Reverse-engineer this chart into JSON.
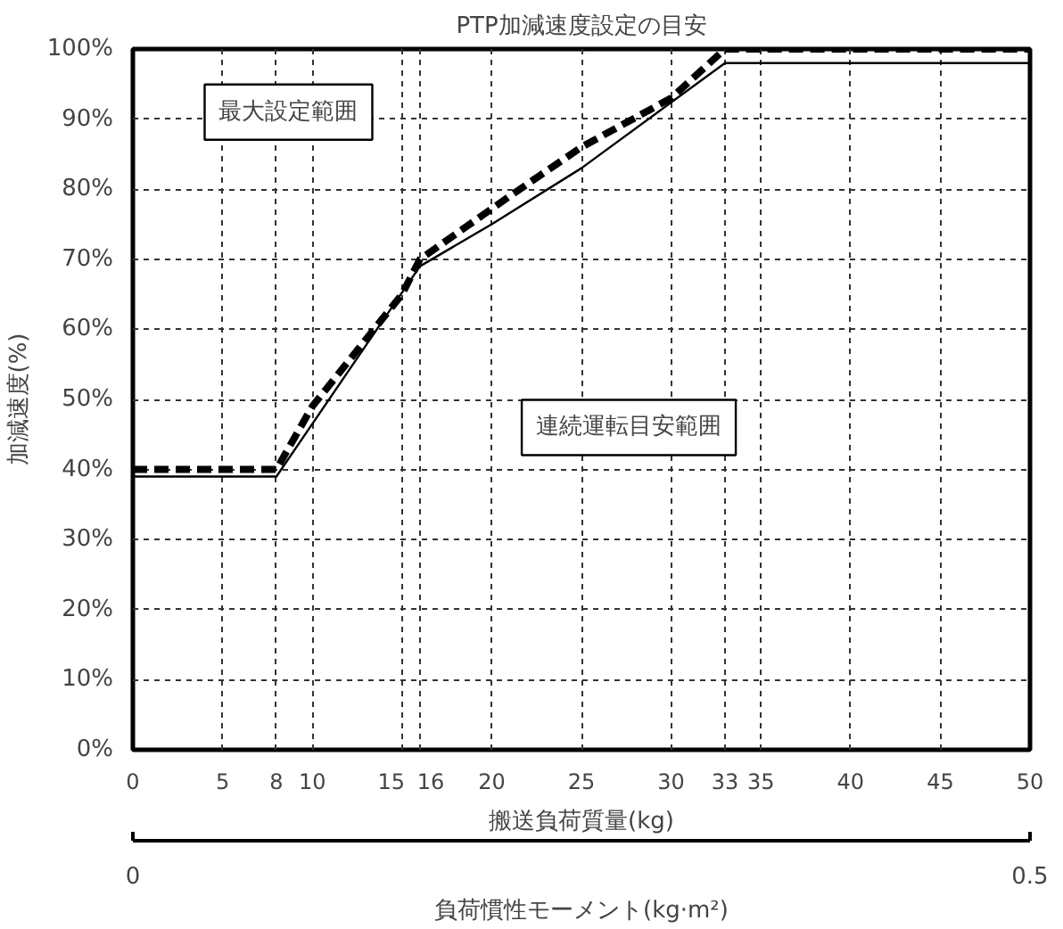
{
  "chart_data": {
    "type": "line",
    "title": "PTP加減速度設定の目安",
    "xlabel": "搬送負荷質量(kg)",
    "ylabel": "加減速度(%)",
    "x2label": "負荷慣性モーメント(kg·m²)",
    "xlim": [
      0,
      50
    ],
    "xticks": [
      0,
      5,
      8,
      10,
      15,
      16,
      20,
      25,
      30,
      33,
      35,
      40,
      45,
      50
    ],
    "x2lim": [
      0,
      0.5
    ],
    "x2ticks": [
      0,
      0.5
    ],
    "ylim": [
      0,
      100
    ],
    "yticks": [
      {
        "value": 0,
        "label": "0%"
      },
      {
        "value": 10,
        "label": "10%"
      },
      {
        "value": 20,
        "label": "20%"
      },
      {
        "value": 30,
        "label": "30%"
      },
      {
        "value": 40,
        "label": "40%"
      },
      {
        "value": 50,
        "label": "50%"
      },
      {
        "value": 60,
        "label": "60%"
      },
      {
        "value": 70,
        "label": "70%"
      },
      {
        "value": 80,
        "label": "80%"
      },
      {
        "value": 90,
        "label": "90%"
      },
      {
        "value": 100,
        "label": "100%"
      }
    ],
    "grid": true,
    "series": [
      {
        "color": "#000000",
        "line_style": "dashed",
        "x": [
          0,
          8,
          10,
          15,
          16,
          21,
          25,
          30,
          33,
          50
        ],
        "values": [
          40,
          40,
          49,
          65,
          70,
          79,
          86,
          93,
          100,
          100
        ]
      },
      {
        "color": "#000000",
        "line_style": "solid",
        "x": [
          0,
          8,
          16,
          20,
          25,
          33,
          50
        ],
        "values": [
          39,
          39,
          69,
          75,
          83,
          98,
          98
        ]
      }
    ],
    "annotations": [
      "最大設定範囲",
      "連続運転目安範囲"
    ]
  }
}
